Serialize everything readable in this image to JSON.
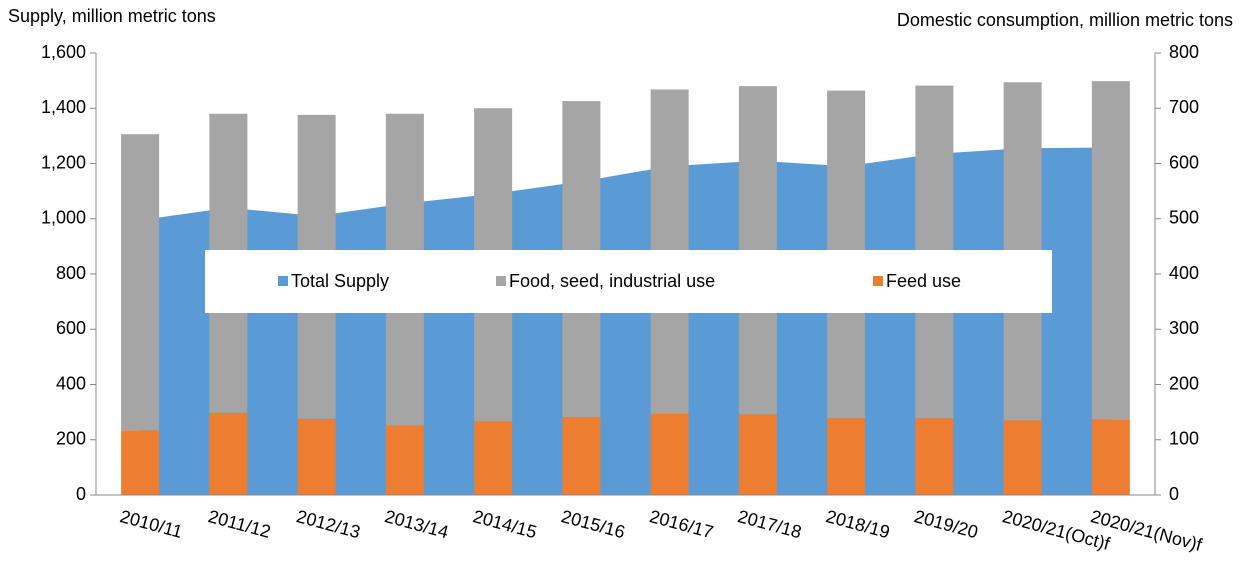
{
  "chart_data": {
    "type": "bar-area",
    "y_label": "Supply, million metric tons",
    "y2_label": "Domestic consumption, million metric tons",
    "categories": [
      "2010/11",
      "2011/12",
      "2012/13",
      "2013/14",
      "2014/15",
      "2015/16",
      "2016/17",
      "2017/18",
      "2018/19",
      "2019/20",
      "2020/21(Oct)f",
      "2020/21(Nov)f"
    ],
    "series": [
      {
        "name": "Total Supply",
        "color": "#5b9bd5",
        "kind": "area",
        "axis": "y",
        "values": [
          995,
          1040,
          1010,
          1055,
          1090,
          1135,
          1190,
          1210,
          1190,
          1235,
          1255,
          1258
        ]
      },
      {
        "name": "Food, seed, industrial use",
        "color": "#a5a5a5",
        "kind": "bar",
        "axis": "y2",
        "values": [
          536,
          541,
          550,
          564,
          567,
          572,
          587,
          594,
          593,
          602,
          612,
          612
        ]
      },
      {
        "name": "Feed use",
        "color": "#ed7d31",
        "kind": "bar",
        "axis": "y2",
        "values": [
          117,
          149,
          138,
          126,
          133,
          141,
          147,
          146,
          139,
          139,
          135,
          137
        ]
      }
    ],
    "ylim": [
      0,
      1600
    ],
    "yticks": [
      0,
      200,
      400,
      600,
      800,
      {
        "value": 1000,
        "label": "1,000"
      },
      {
        "value": 1200,
        "label": "1,200"
      },
      {
        "value": 1400,
        "label": "1,400"
      },
      {
        "value": 1600,
        "label": "1,600"
      }
    ],
    "y2lim": [
      0,
      800
    ],
    "y2ticks": [
      0,
      100,
      200,
      300,
      400,
      500,
      600,
      700,
      800
    ],
    "legend": "center"
  }
}
